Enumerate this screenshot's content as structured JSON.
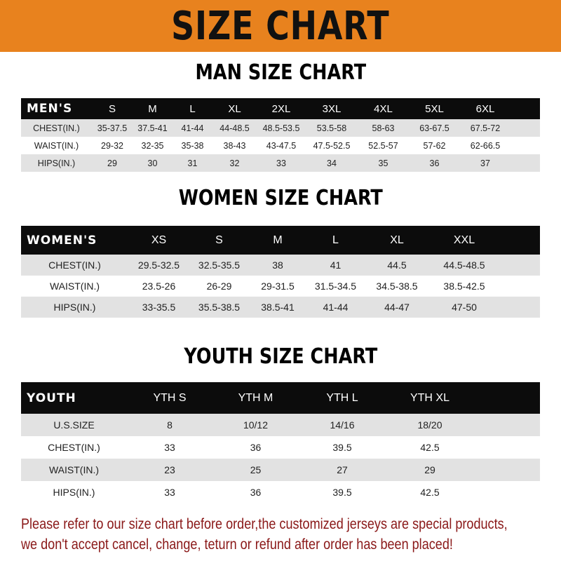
{
  "banner_title": "SIZE CHART",
  "colors": {
    "banner": "#e8821e",
    "header_row": "#0c0c0c",
    "stripe": "#e2e2e2",
    "note": "#8a1818"
  },
  "men": {
    "title": "MAN SIZE CHART",
    "header": [
      "MEN'S",
      "S",
      "M",
      "L",
      "XL",
      "2XL",
      "3XL",
      "4XL",
      "5XL",
      "6XL"
    ],
    "rows": [
      [
        "CHEST(IN.)",
        "35-37.5",
        "37.5-41",
        "41-44",
        "44-48.5",
        "48.5-53.5",
        "53.5-58",
        "58-63",
        "63-67.5",
        "67.5-72"
      ],
      [
        "WAIST(IN.)",
        "29-32",
        "32-35",
        "35-38",
        "38-43",
        "43-47.5",
        "47.5-52.5",
        "52.5-57",
        "57-62",
        "62-66.5"
      ],
      [
        "HIPS(IN.)",
        "29",
        "30",
        "31",
        "32",
        "33",
        "34",
        "35",
        "36",
        "37"
      ]
    ]
  },
  "women": {
    "title": "WOMEN SIZE CHART",
    "header": [
      "WOMEN'S",
      "XS",
      "S",
      "M",
      "L",
      "XL",
      "XXL"
    ],
    "rows": [
      [
        "CHEST(IN.)",
        "29.5-32.5",
        "32.5-35.5",
        "38",
        "41",
        "44.5",
        "44.5-48.5"
      ],
      [
        "WAIST(IN.)",
        "23.5-26",
        "26-29",
        "29-31.5",
        "31.5-34.5",
        "34.5-38.5",
        "38.5-42.5"
      ],
      [
        "HIPS(IN.)",
        "33-35.5",
        "35.5-38.5",
        "38.5-41",
        "41-44",
        "44-47",
        "47-50"
      ]
    ]
  },
  "youth": {
    "title": "YOUTH SIZE CHART",
    "header": [
      "YOUTH",
      "YTH S",
      "YTH M",
      "YTH L",
      "YTH XL"
    ],
    "rows": [
      [
        "U.S.SIZE",
        "8",
        "10/12",
        "14/16",
        "18/20"
      ],
      [
        "CHEST(IN.)",
        "33",
        "36",
        "39.5",
        "42.5"
      ],
      [
        "WAIST(IN.)",
        "23",
        "25",
        "27",
        "29"
      ],
      [
        "HIPS(IN.)",
        "33",
        "36",
        "39.5",
        "42.5"
      ]
    ]
  },
  "note": {
    "line1": "Please refer to our size chart before order,the customized jerseys are special products,",
    "line2": "we don't accept cancel, change, teturn or refund after order has been placed!"
  }
}
